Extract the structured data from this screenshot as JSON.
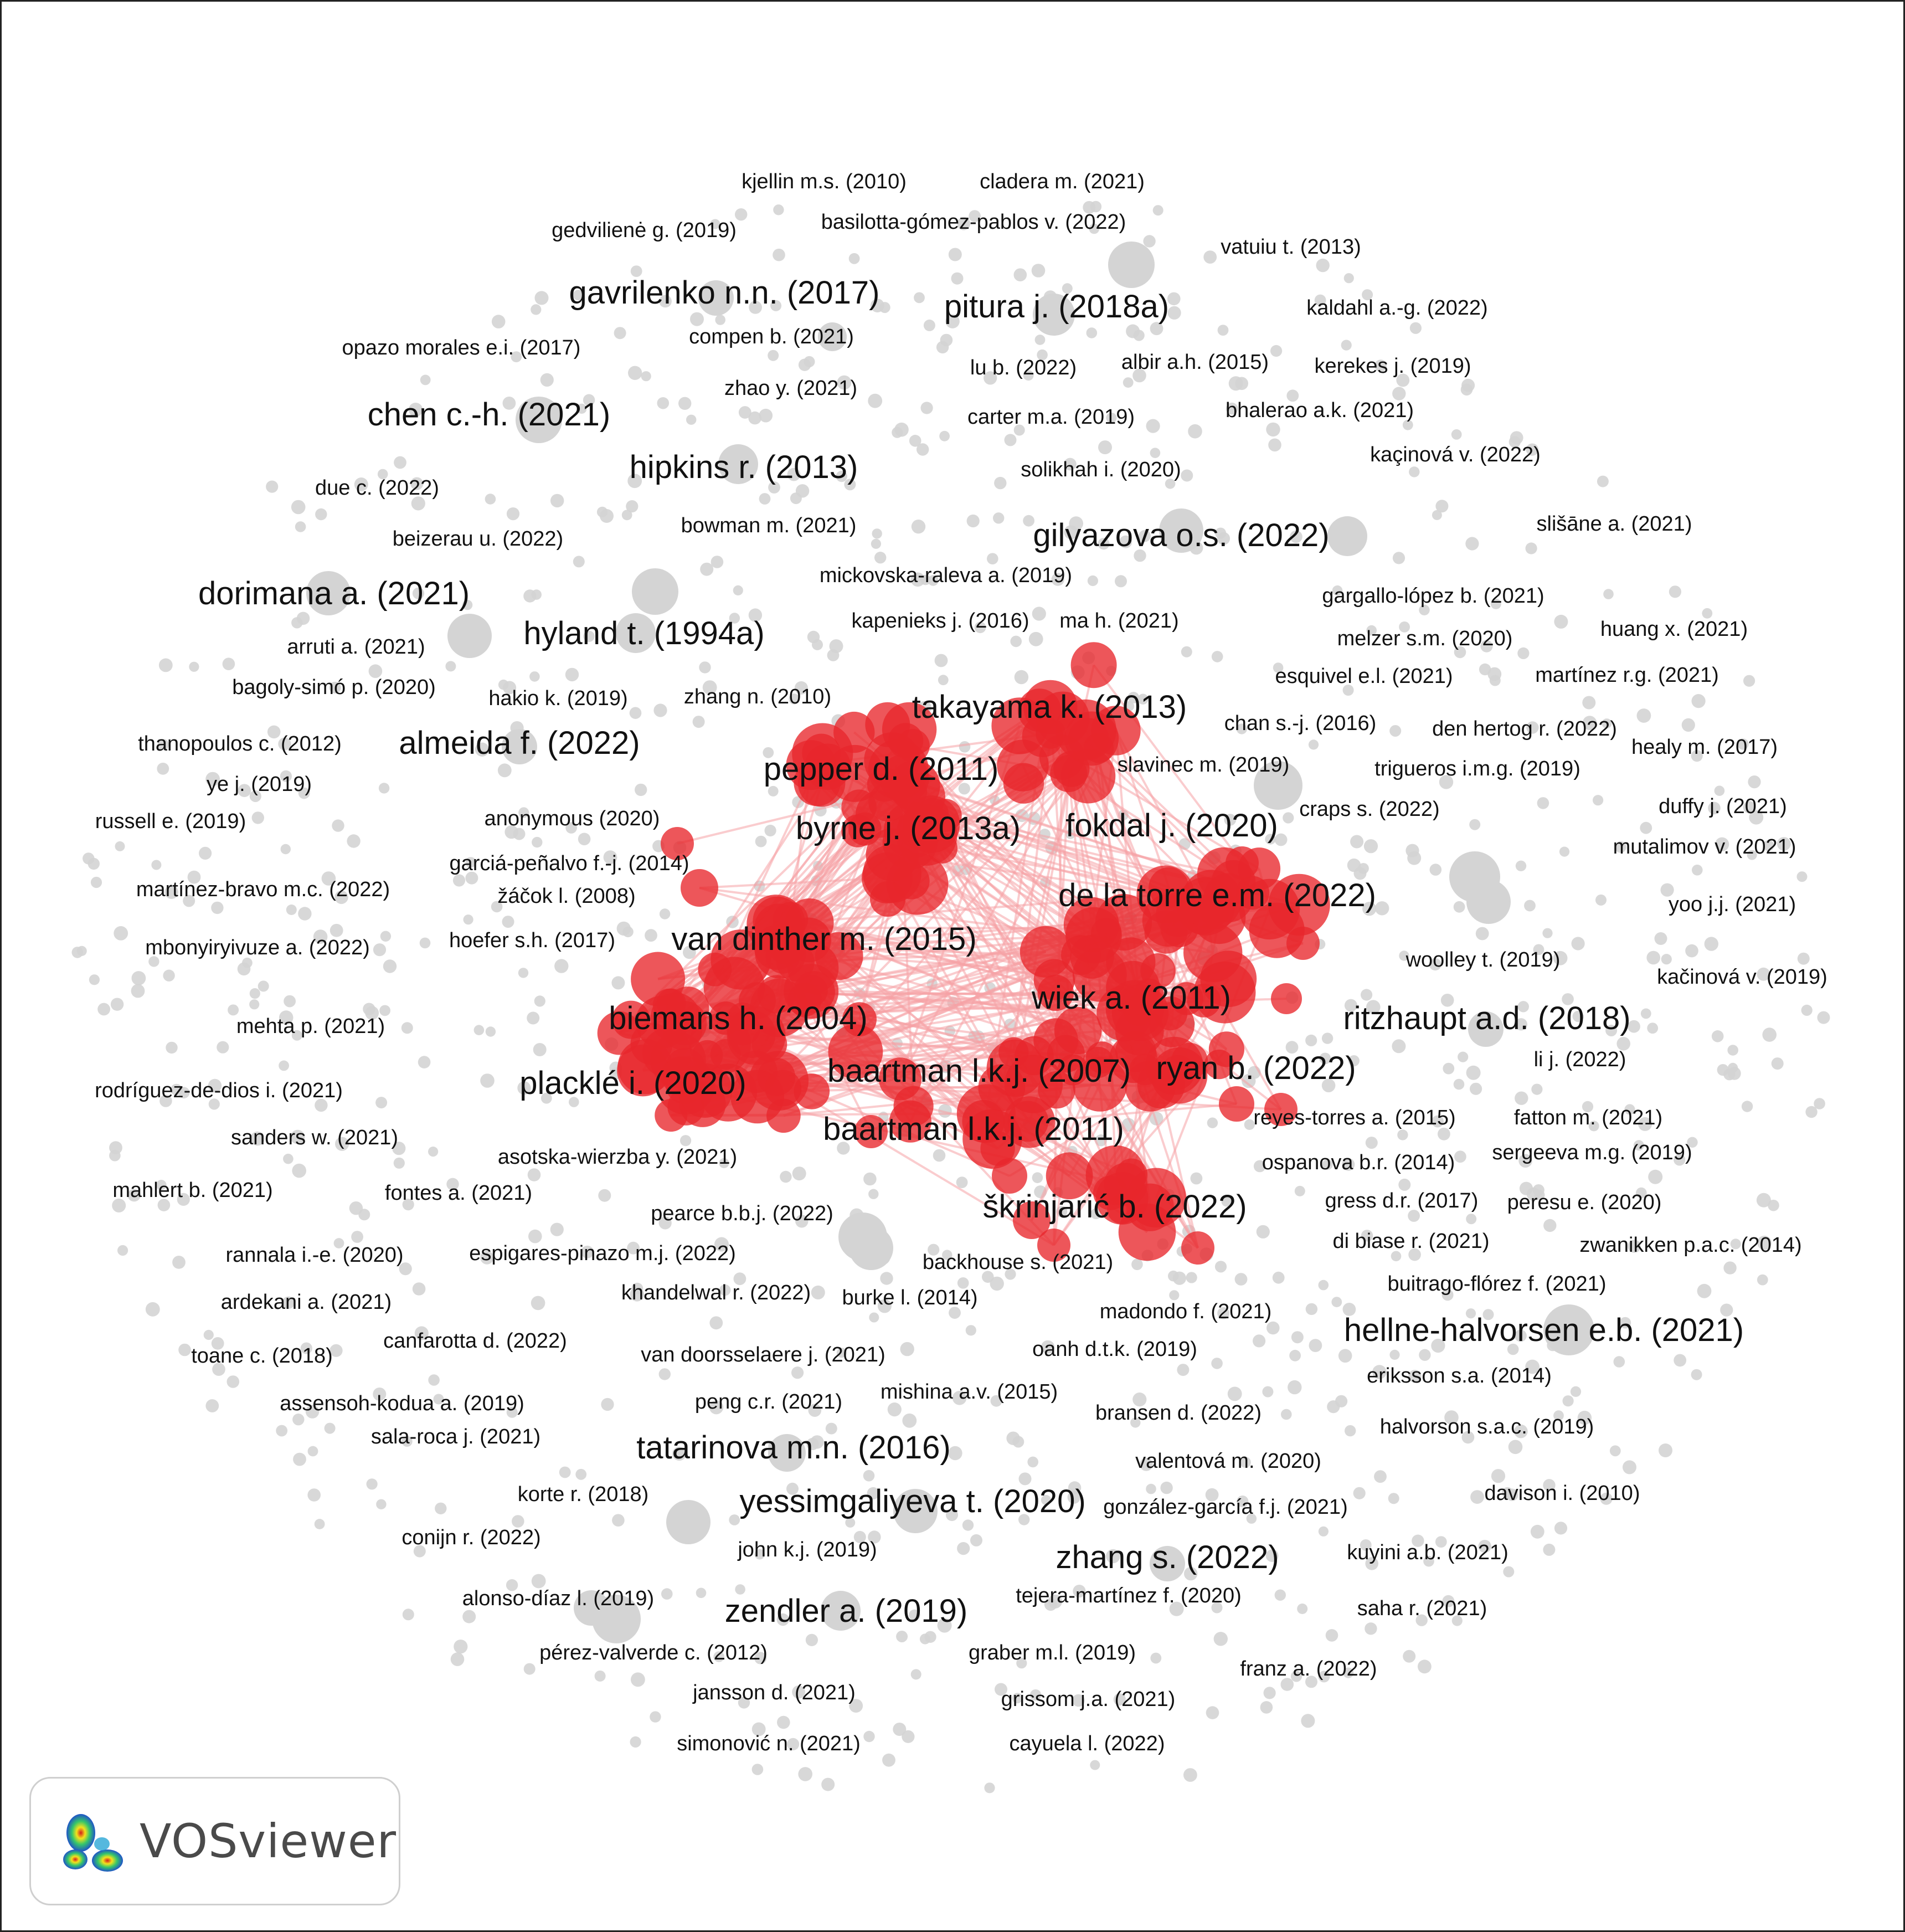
{
  "software_label": "VOSviewer",
  "colors": {
    "cluster_red": "#e8262b",
    "inactive_gray": "#d4d4d4",
    "link": "#f5a3a5"
  },
  "nodes": {
    "large": [
      "gavrilenko n.n. (2017)",
      "pitura j. (2018a)",
      "chen c.-h. (2021)",
      "hipkins r. (2013)",
      "gilyazova o.s. (2022)",
      "dorimana a. (2021)",
      "hyland t. (1994a)",
      "takayama k. (2013)",
      "almeida f. (2022)",
      "pepper d. (2011)",
      "byrne j. (2013a)",
      "fokdal j. (2020)",
      "de la torre e.m. (2022)",
      "van dinther m. (2015)",
      "wiek a. (2011)",
      "biemans h. (2004)",
      "ritzhaupt a.d. (2018)",
      "placklé i. (2020)",
      "baartman l.k.j. (2007)",
      "ryan b. (2022)",
      "baartman l.k.j. (2011)",
      "škrinjarić b. (2022)",
      "hellne-halvorsen e.b. (2021)",
      "tatarinova m.n. (2016)",
      "yessimgaliyeva t. (2020)",
      "zhang s. (2022)",
      "zendler a. (2019)"
    ],
    "small": [
      "kjellin m.s. (2010)",
      "cladera m. (2021)",
      "gedvilienė g. (2019)",
      "basilotta-gómez-pablos v. (2022)",
      "vatuiu t. (2013)",
      "kaldahl a.-g. (2022)",
      "compen b. (2021)",
      "opazo morales e.i. (2017)",
      "lu b. (2022)",
      "albir a.h. (2015)",
      "kerekes j. (2019)",
      "zhao y. (2021)",
      "carter m.a. (2019)",
      "bhalerao a.k. (2021)",
      "kaçinová v. (2022)",
      "solikhah i. (2020)",
      "due c. (2022)",
      "slišāne a. (2021)",
      "bowman m. (2021)",
      "beizerau u. (2022)",
      "mickovska-raleva a. (2019)",
      "gargallo-lópez b. (2021)",
      "kapenieks j. (2016)",
      "ma h. (2021)",
      "huang x. (2021)",
      "arruti a. (2021)",
      "melzer s.m. (2020)",
      "bagoly-simó p. (2020)",
      "esquivel e.l. (2021)",
      "martínez r.g. (2021)",
      "hakio k. (2019)",
      "zhang n. (2010)",
      "chan s.-j. (2016)",
      "den hertog r. (2022)",
      "thanopoulos c. (2012)",
      "healy m. (2017)",
      "slavinec m. (2019)",
      "trigueros i.m.g. (2019)",
      "ye j. (2019)",
      "duffy j. (2021)",
      "craps s. (2022)",
      "russell e. (2019)",
      "anonymous (2020)",
      "mutalimov v. (2021)",
      "garciá-peñalvo f.-j. (2014)",
      "žáčok l. (2008)",
      "martínez-bravo m.c. (2022)",
      "yoo j.j. (2021)",
      "mbonyiryivuze a. (2022)",
      "hoefer s.h. (2017)",
      "woolley t. (2019)",
      "kačinová v. (2019)",
      "mehta p. (2021)",
      "li j. (2022)",
      "rodríguez-de-dios i. (2021)",
      "reyes-torres a. (2015)",
      "fatton m. (2021)",
      "sanders w. (2021)",
      "asotska-wierzba y. (2021)",
      "sergeeva m.g. (2019)",
      "ospanova b.r. (2014)",
      "mahlert b. (2021)",
      "fontes a. (2021)",
      "gress d.r. (2017)",
      "peresu e. (2020)",
      "pearce b.b.j. (2022)",
      "di biase r. (2021)",
      "zwanikken p.a.c. (2014)",
      "rannala i.-e. (2020)",
      "espigares-pinazo m.j. (2022)",
      "backhouse s. (2021)",
      "buitrago-flórez f. (2021)",
      "khandelwal r. (2022)",
      "burke l. (2014)",
      "ardekani a. (2021)",
      "madondo f. (2021)",
      "canfarotta d. (2022)",
      "toane c. (2018)",
      "van doorsselaere j. (2021)",
      "oanh d.t.k. (2019)",
      "eriksson s.a. (2014)",
      "mishina a.v. (2015)",
      "assensoh-kodua a. (2019)",
      "peng c.r. (2021)",
      "bransen d. (2022)",
      "halvorson s.a.c. (2019)",
      "sala-roca j. (2021)",
      "valentová m. (2020)",
      "korte r. (2018)",
      "gonzález-garcía f.j. (2021)",
      "davison i. (2010)",
      "conijn r. (2022)",
      "john k.j. (2019)",
      "kuyini a.b. (2021)",
      "alonso-díaz l. (2019)",
      "tejera-martínez f. (2020)",
      "saha r. (2021)",
      "pérez-valverde c. (2012)",
      "graber m.l. (2019)",
      "franz a. (2022)",
      "jansson d. (2021)",
      "grissom j.a. (2021)",
      "simonović n. (2021)",
      "cayuela l. (2022)"
    ]
  }
}
